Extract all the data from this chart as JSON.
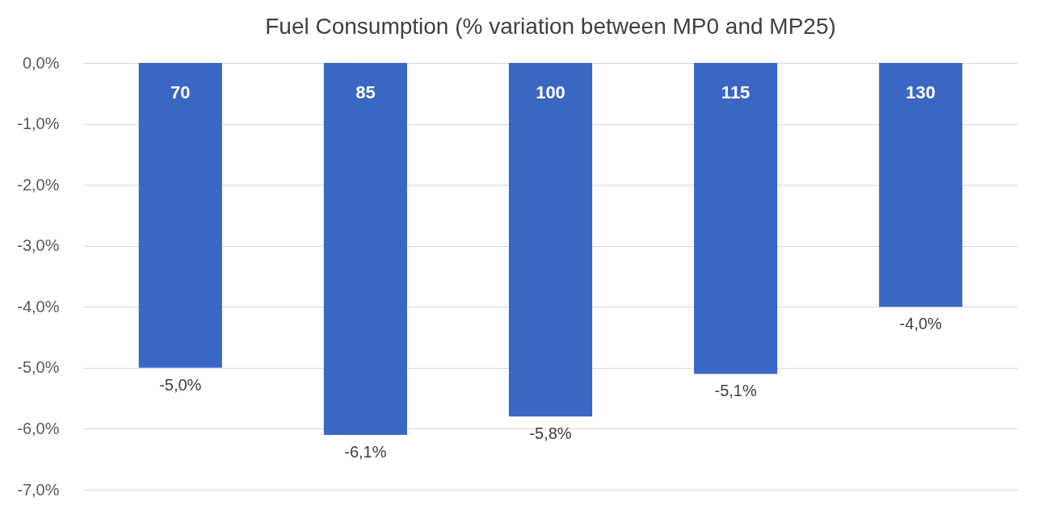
{
  "chart_data": {
    "type": "bar",
    "title": "Fuel Consumption (% variation between MP0 and MP25)",
    "categories": [
      "70",
      "85",
      "100",
      "115",
      "130"
    ],
    "values": [
      -5.0,
      -6.1,
      -5.8,
      -5.1,
      -4.0
    ],
    "value_labels": [
      "-5,0%",
      "-6,1%",
      "-5,8%",
      "-5,1%",
      "-4,0%"
    ],
    "color": "#3a66c4",
    "ylim": [
      -7,
      0
    ],
    "yticks": [
      {
        "value": 0,
        "label": "0,0%"
      },
      {
        "value": -1,
        "label": "-1,0%"
      },
      {
        "value": -2,
        "label": "-2,0%"
      },
      {
        "value": -3,
        "label": "-3,0%"
      },
      {
        "value": -4,
        "label": "-4,0%"
      },
      {
        "value": -5,
        "label": "-5,0%"
      },
      {
        "value": -6,
        "label": "-6,0%"
      },
      {
        "value": -7,
        "label": "-7,0%"
      }
    ],
    "grid": "y"
  }
}
